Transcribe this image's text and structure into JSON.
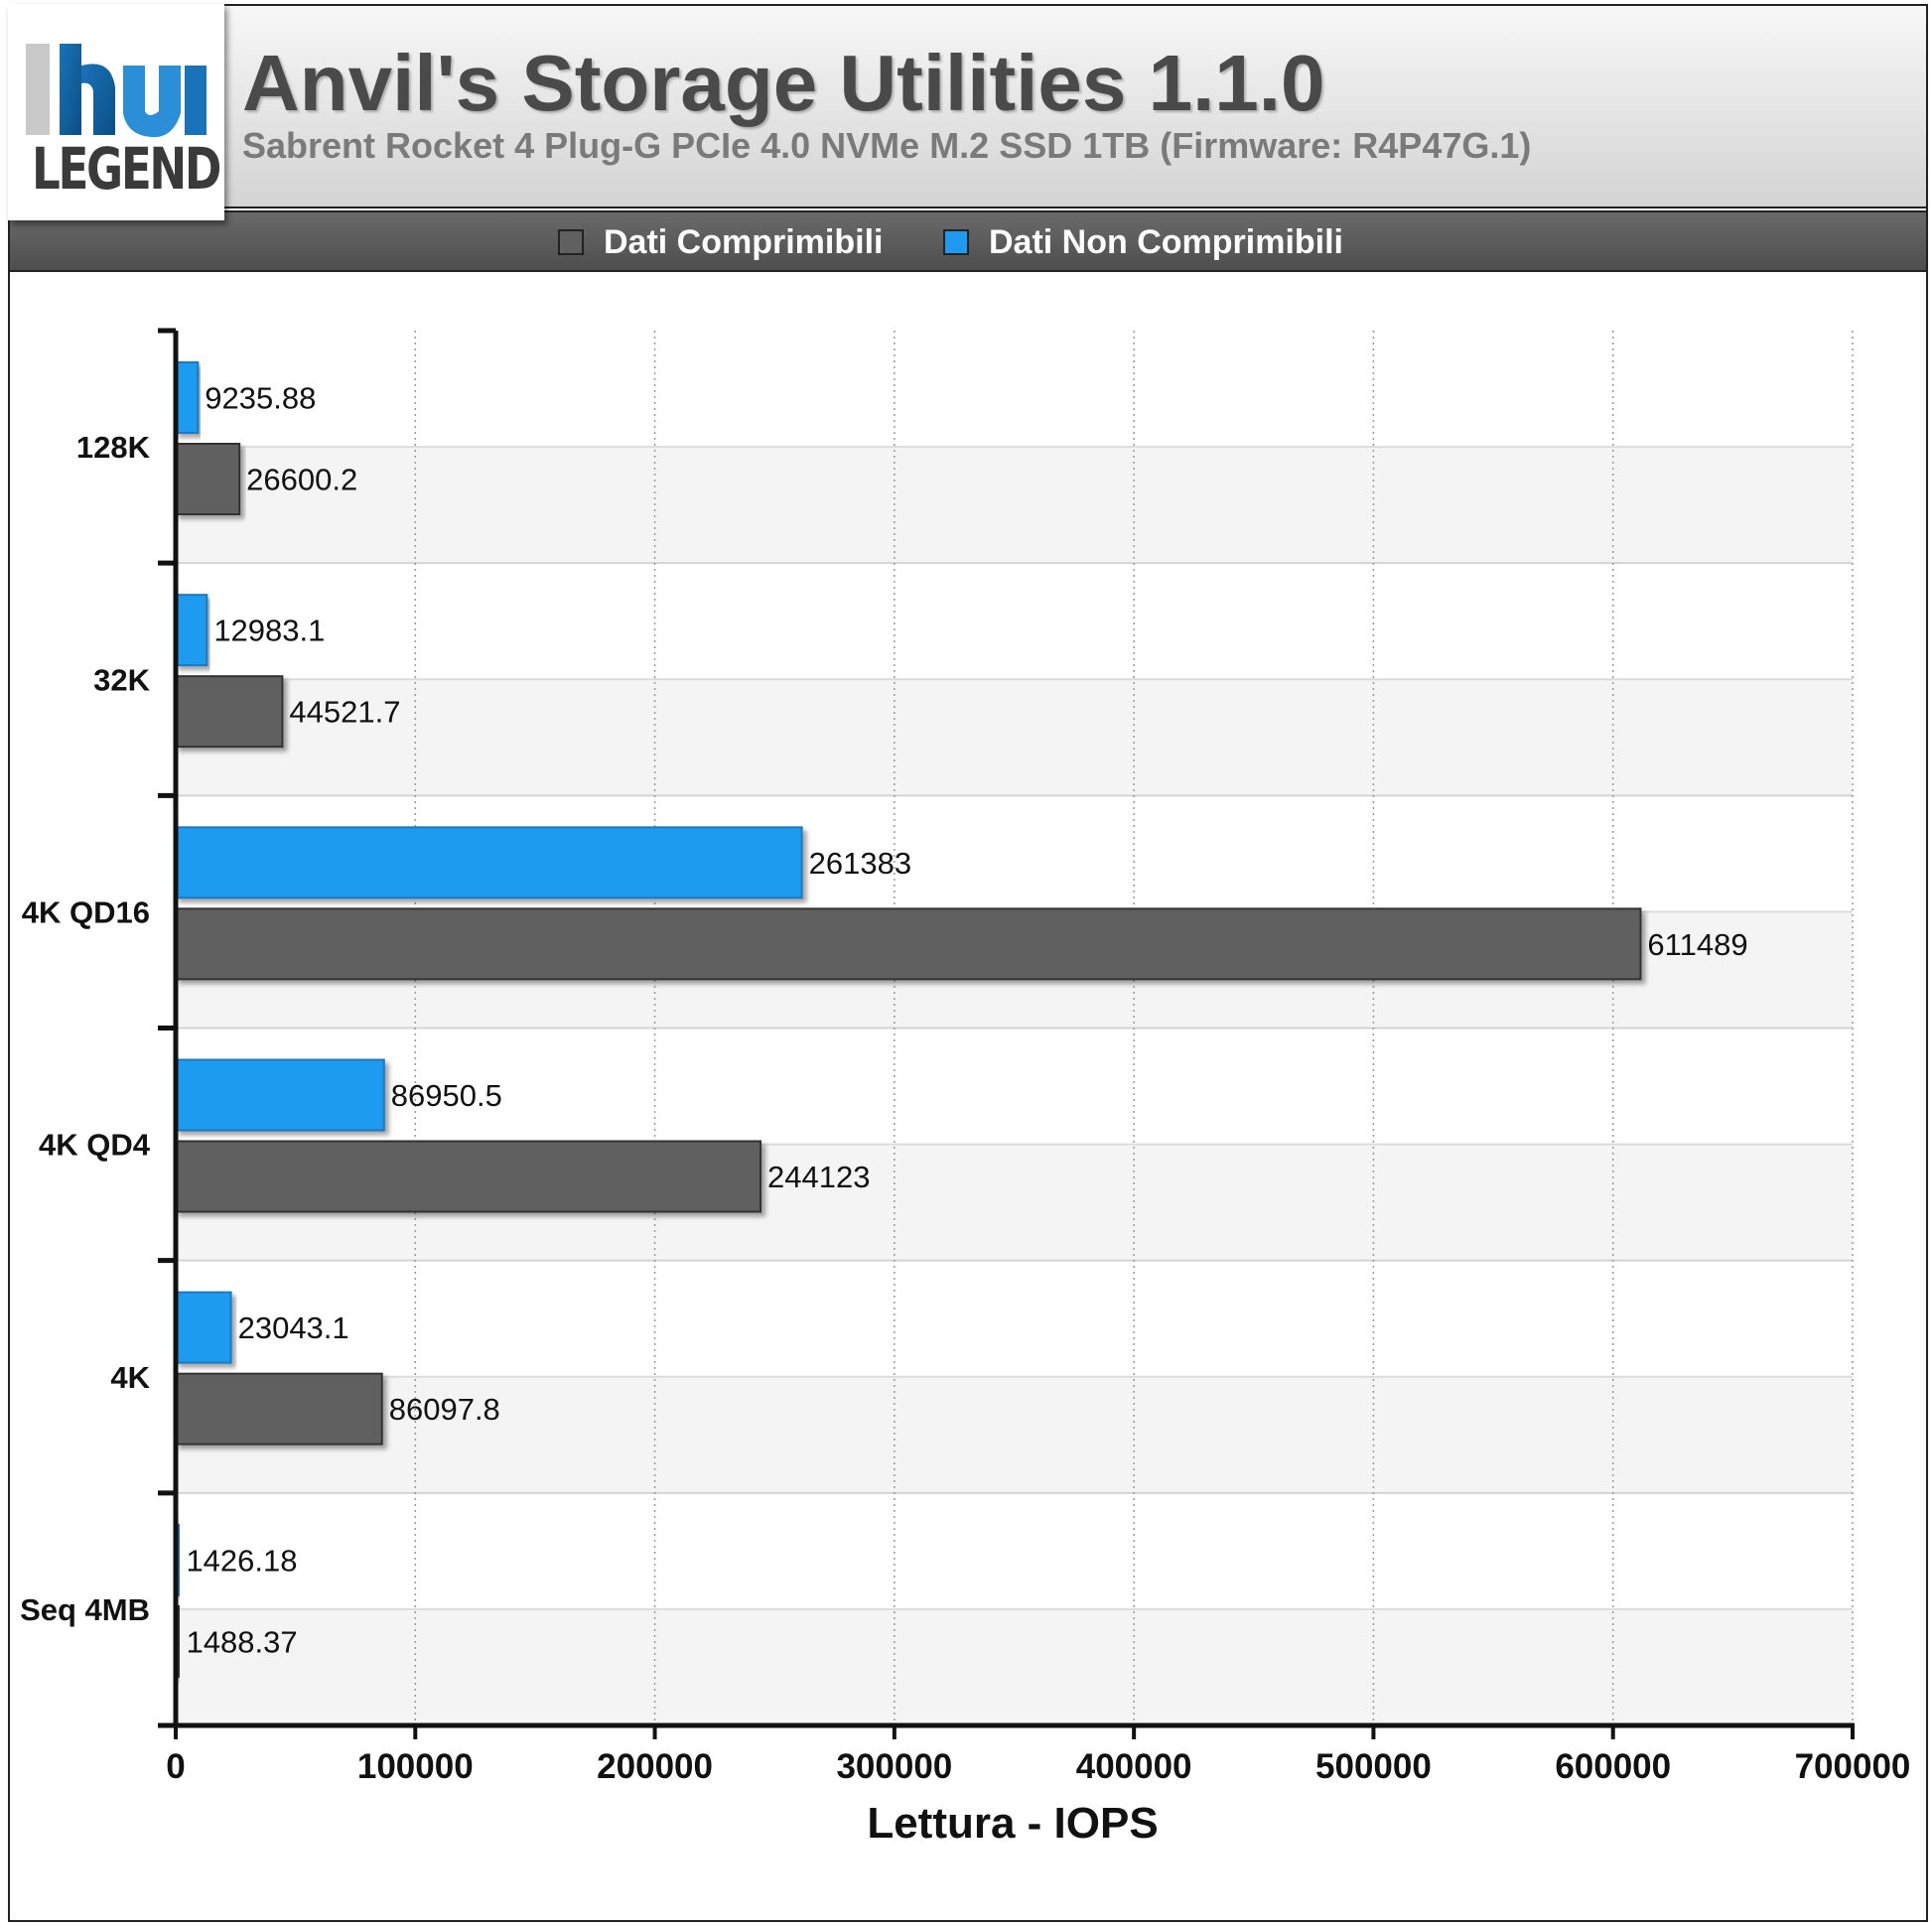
{
  "header": {
    "logo_text": "LEGEND",
    "title": "Anvil's Storage Utilities 1.1.0",
    "subtitle": "Sabrent Rocket 4 Plug-G PCIe 4.0 NVMe M.2 SSD 1TB (Firmware: R4P47G.1)"
  },
  "legend": {
    "items": [
      {
        "label": "Dati Comprimibili",
        "color": "#606060"
      },
      {
        "label": "Dati Non Comprimibili",
        "color": "#1e9bef"
      }
    ]
  },
  "chart_data": {
    "type": "bar",
    "orientation": "horizontal",
    "categories": [
      "128K",
      "32K",
      "4K QD16",
      "4K QD4",
      "4K",
      "Seq 4MB"
    ],
    "series": [
      {
        "name": "Dati Non Comprimibili",
        "color": "#1e9bef",
        "values": [
          9235.88,
          12983.1,
          261383,
          86950.5,
          23043.1,
          1426.18
        ],
        "labels": [
          "9235.88",
          "12983.1",
          "261383",
          "86950.5",
          "23043.1",
          "1426.18"
        ]
      },
      {
        "name": "Dati Comprimibili",
        "color": "#606060",
        "values": [
          26600.2,
          44521.7,
          611489,
          244123,
          86097.8,
          1488.37
        ],
        "labels": [
          "26600.2",
          "44521.7",
          "611489",
          "244123",
          "86097.8",
          "1488.37"
        ]
      }
    ],
    "xlabel": "Lettura - IOPS",
    "xlim": [
      0,
      700000
    ],
    "xticks": [
      "0",
      "100000",
      "200000",
      "300000",
      "400000",
      "500000",
      "600000",
      "700000"
    ],
    "grid": "vertical dotted",
    "legend_position": "top"
  }
}
